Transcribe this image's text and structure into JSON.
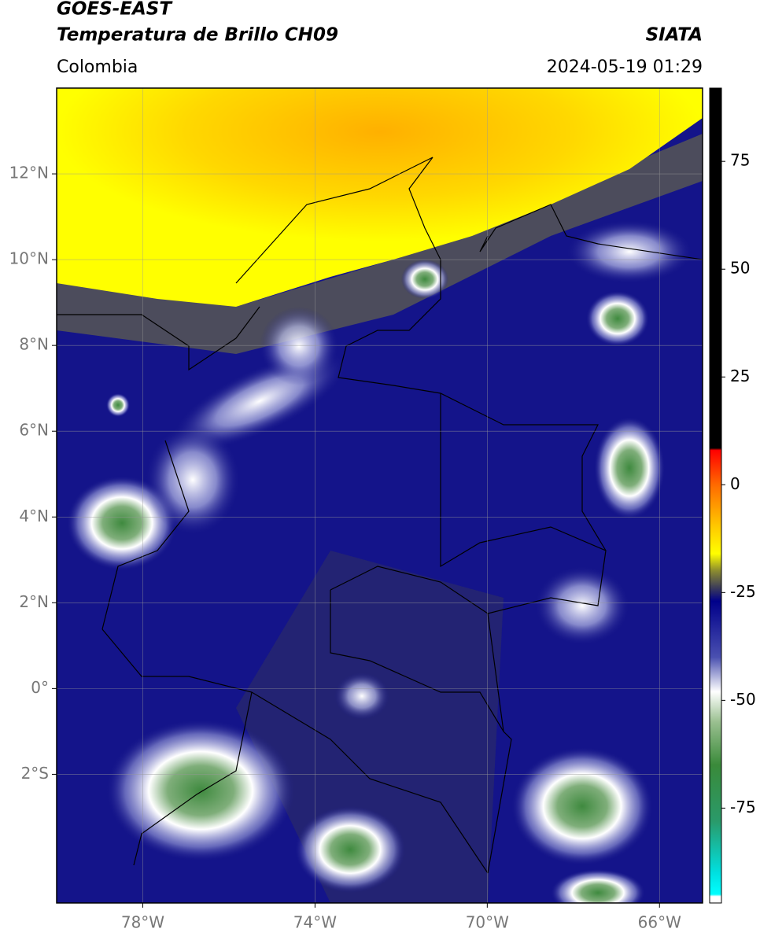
{
  "chart_data": {
    "type": "map",
    "title": "GOES-EAST",
    "subtitle": "Temperatura de Brillo CH09",
    "source": "SIATA",
    "region": "Colombia",
    "datetime": "2024-05-19 01:29",
    "xlim": [
      -80,
      -65
    ],
    "ylim": [
      -5,
      14
    ],
    "xticks": [
      {
        "value": -78,
        "label": "78°W"
      },
      {
        "value": -74,
        "label": "74°W"
      },
      {
        "value": -70,
        "label": "70°W"
      },
      {
        "value": -66,
        "label": "66°W"
      }
    ],
    "yticks": [
      {
        "value": -2,
        "label": "2°S"
      },
      {
        "value": 0,
        "label": "0°"
      },
      {
        "value": 2,
        "label": "2°N"
      },
      {
        "value": 4,
        "label": "4°N"
      },
      {
        "value": 6,
        "label": "6°N"
      },
      {
        "value": 8,
        "label": "8°N"
      },
      {
        "value": 10,
        "label": "10°N"
      },
      {
        "value": 12,
        "label": "12°N"
      }
    ],
    "grid": true,
    "clim": [
      -97,
      92
    ],
    "cticks": [
      -75,
      -50,
      -25,
      0,
      25,
      50,
      75
    ],
    "colormap": [
      {
        "value": 92,
        "color": "#000000"
      },
      {
        "value": 8.5,
        "color": "#000000"
      },
      {
        "value": 8,
        "color": "#ff0000"
      },
      {
        "value": 0,
        "color": "#ff6a00"
      },
      {
        "value": -10,
        "color": "#ffcc00"
      },
      {
        "value": -16,
        "color": "#ffff00"
      },
      {
        "value": -20,
        "color": "#8a8a30"
      },
      {
        "value": -24,
        "color": "#3a3a5a"
      },
      {
        "value": -27,
        "color": "#00008a"
      },
      {
        "value": -40,
        "color": "#4a50b0"
      },
      {
        "value": -48,
        "color": "#ffffff"
      },
      {
        "value": -55,
        "color": "#9ac090"
      },
      {
        "value": -65,
        "color": "#3a8a3a"
      },
      {
        "value": -78,
        "color": "#2a9a6a"
      },
      {
        "value": -90,
        "color": "#00e0e0"
      },
      {
        "value": -95,
        "color": "#00ffff"
      },
      {
        "value": -95.5,
        "color": "#ffffff"
      },
      {
        "value": -97,
        "color": "#ffffff"
      }
    ]
  }
}
